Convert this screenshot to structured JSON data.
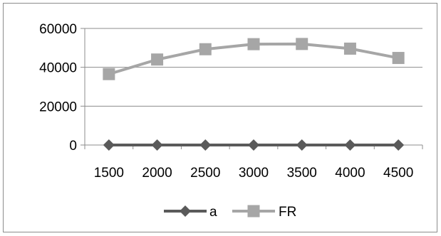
{
  "chart_data": {
    "type": "line",
    "title": "",
    "xlabel": "",
    "ylabel": "",
    "categories": [
      "1500",
      "2000",
      "2500",
      "3000",
      "3500",
      "4000",
      "4500"
    ],
    "ylim": [
      0,
      60000
    ],
    "yticks": [
      0,
      20000,
      40000,
      60000
    ],
    "grid": true,
    "legend_position": "bottom",
    "series": [
      {
        "name": "a",
        "values": [
          0,
          0,
          0,
          0,
          0,
          0,
          0
        ],
        "color": "#5a5a5a",
        "marker": "diamond"
      },
      {
        "name": "FR",
        "values": [
          36500,
          44000,
          49300,
          51900,
          52000,
          49600,
          44800
        ],
        "color": "#a6a6a6",
        "marker": "square"
      }
    ]
  }
}
